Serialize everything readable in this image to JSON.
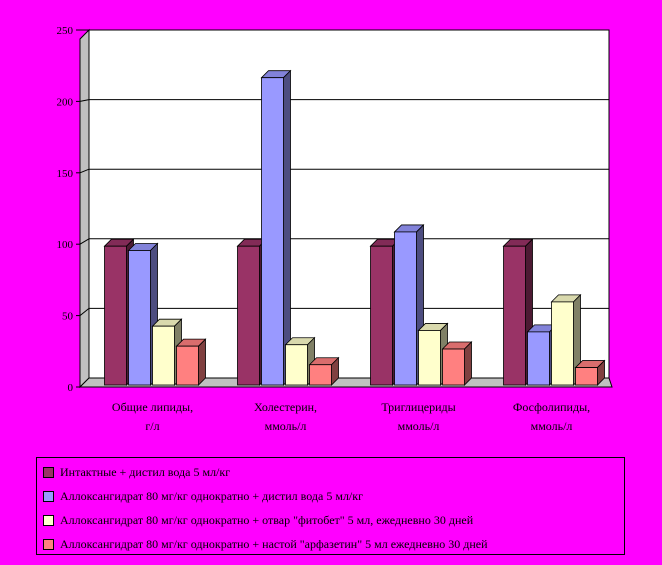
{
  "chart_data": {
    "type": "bar",
    "categories": [
      [
        "Общие липиды,",
        "г/л"
      ],
      [
        "Холестерин,",
        "ммоль/л"
      ],
      [
        "Триглицериды",
        "ммоль/л"
      ],
      [
        "Фосфолипиды,",
        "ммоль/л"
      ]
    ],
    "series": [
      {
        "name": "Интактные + дистил вода 5 мл/кг",
        "values": [
          100,
          100,
          100,
          100
        ],
        "color": "#993366"
      },
      {
        "name": "Аллоксангидрат 80 мг/кг однократно + дистил вода 5 мл/кг",
        "values": [
          97,
          218,
          110,
          40
        ],
        "color": "#9999FF"
      },
      {
        "name": "Аллоксангидрат 80 мг/кг однократно + отвар \"фитобет\" 5 мл, ежедневно 30 дней",
        "values": [
          44,
          31,
          41,
          61
        ],
        "color": "#FFFFCC"
      },
      {
        "name": "Аллоксангидрат 80 мг/кг однократно + настой \"арфазетин\" 5 мл ежедневно 30 дней",
        "values": [
          30,
          17,
          28,
          15
        ],
        "color": "#FF8080"
      }
    ],
    "ylim": [
      0,
      250
    ],
    "yticks": [
      "0",
      "50",
      "100",
      "150",
      "200",
      "250"
    ],
    "grid": true,
    "legend_position": "bottom"
  }
}
